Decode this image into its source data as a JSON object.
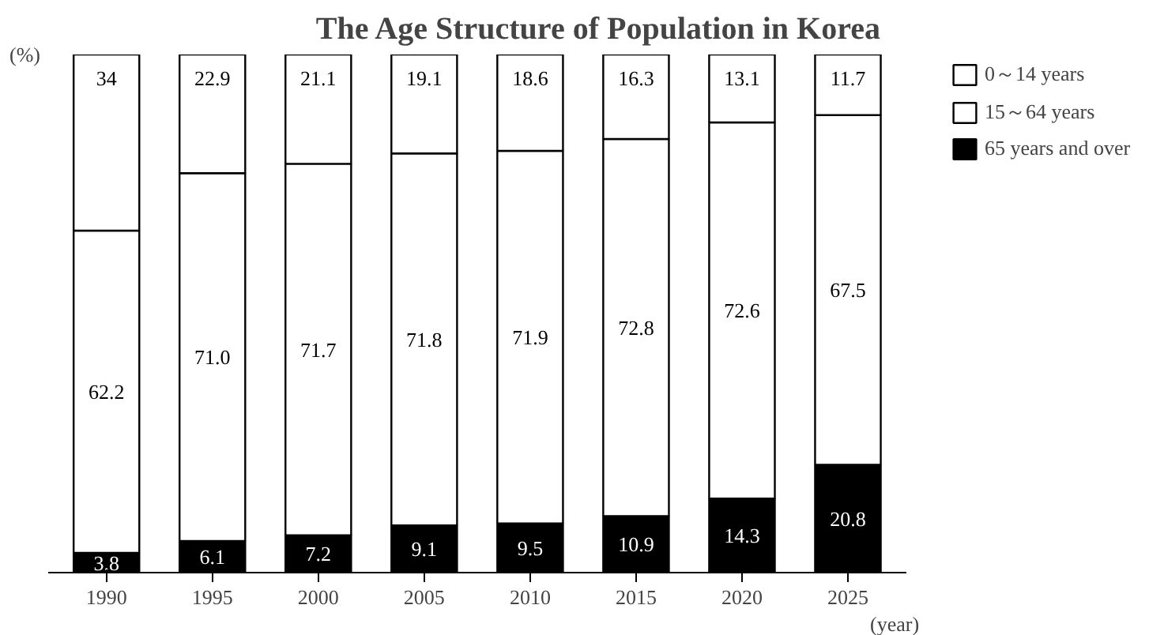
{
  "chart_data": {
    "type": "bar",
    "stacked": true,
    "title": "The Age Structure of Population in Korea",
    "ylabel": "(%)",
    "xlabel": "(year)",
    "categories": [
      "1990",
      "1995",
      "2000",
      "2005",
      "2010",
      "2015",
      "2020",
      "2025"
    ],
    "ylim": [
      0,
      100
    ],
    "tick_labels": "x",
    "legend": "top right",
    "series": [
      {
        "name": "65 years and over",
        "color": "#000000",
        "values": [
          3.8,
          6.1,
          7.2,
          9.1,
          9.5,
          10.9,
          14.3,
          20.8
        ],
        "value_labels": [
          "3.8",
          "6.1",
          "7.2",
          "9.1",
          "9.5",
          "10.9",
          "14.3",
          "20.8"
        ]
      },
      {
        "name": "15～64 years",
        "color": "#ffffff",
        "values": [
          62.2,
          71.0,
          71.7,
          71.8,
          71.9,
          72.8,
          72.6,
          67.5
        ],
        "value_labels": [
          "62.2",
          "71.0",
          "71.7",
          "71.8",
          "71.9",
          "72.8",
          "72.6",
          "67.5"
        ]
      },
      {
        "name": "0～14 years",
        "color": "#ffffff",
        "values": [
          34,
          22.9,
          21.1,
          19.1,
          18.6,
          16.3,
          13.1,
          11.7
        ],
        "value_labels": [
          "34",
          "22.9",
          "21.1",
          "19.1",
          "18.6",
          "16.3",
          "13.1",
          "11.7"
        ]
      }
    ]
  }
}
